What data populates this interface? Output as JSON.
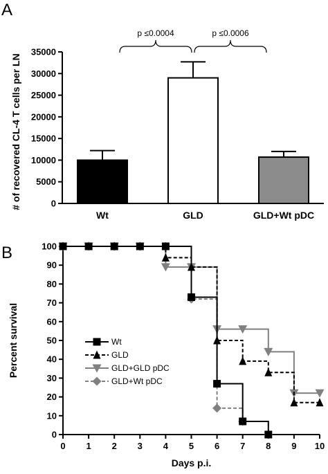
{
  "chart_data": [
    {
      "panel": "A",
      "type": "bar",
      "title": "",
      "xlabel": "",
      "ylabel": "# of recovered CL-4 T cells per LN",
      "ylim": [
        0,
        35000
      ],
      "yticks": [
        0,
        5000,
        10000,
        15000,
        20000,
        25000,
        30000,
        35000
      ],
      "categories": [
        "Wt",
        "GLD",
        "GLD+Wt pDC"
      ],
      "values": [
        10000,
        29000,
        10700
      ],
      "errors": [
        2200,
        3700,
        1300
      ],
      "colors": [
        "#000000",
        "#ffffff",
        "#8c8c8c"
      ],
      "annotations": [
        {
          "text": "p ≤0.0004",
          "between": [
            "Wt",
            "GLD"
          ]
        },
        {
          "text": "p ≤0.0006",
          "between": [
            "GLD",
            "GLD+Wt pDC"
          ]
        }
      ],
      "grid": false
    },
    {
      "panel": "B",
      "type": "line",
      "step": true,
      "title": "",
      "xlabel": "Days p.i.",
      "ylabel": "Percent survival",
      "xlim": [
        0,
        10
      ],
      "ylim": [
        0,
        100
      ],
      "xticks": [
        0,
        1,
        2,
        3,
        4,
        5,
        6,
        7,
        8,
        9,
        10
      ],
      "yticks": [
        0,
        10,
        20,
        30,
        40,
        50,
        60,
        70,
        80,
        90,
        100
      ],
      "grid": false,
      "legend_position": "center-left",
      "series": [
        {
          "name": "Wt",
          "color": "#000000",
          "marker": "square",
          "dash": "solid",
          "x": [
            0,
            1,
            2,
            3,
            4,
            5,
            6,
            7,
            8
          ],
          "y": [
            100,
            100,
            100,
            100,
            100,
            73,
            27,
            7,
            0
          ]
        },
        {
          "name": "GLD",
          "color": "#000000",
          "marker": "triangle-up",
          "dash": "dashed",
          "x": [
            0,
            1,
            2,
            3,
            4,
            5,
            6,
            7,
            8,
            9,
            10
          ],
          "y": [
            100,
            100,
            100,
            100,
            94,
            89,
            50,
            39,
            33,
            17,
            17
          ]
        },
        {
          "name": "GLD+GLD pDC",
          "color": "#808080",
          "marker": "triangle-down",
          "dash": "solid",
          "x": [
            0,
            1,
            2,
            3,
            4,
            5,
            6,
            7,
            8,
            9,
            10
          ],
          "y": [
            100,
            100,
            100,
            100,
            89,
            89,
            56,
            56,
            44,
            22,
            22
          ]
        },
        {
          "name": "GLD+Wt pDC",
          "color": "#808080",
          "marker": "diamond",
          "dash": "dashed",
          "x": [
            0,
            1,
            2,
            3,
            4,
            5,
            6,
            7,
            8
          ],
          "y": [
            100,
            100,
            100,
            100,
            100,
            72,
            14,
            7,
            0
          ]
        }
      ]
    }
  ]
}
